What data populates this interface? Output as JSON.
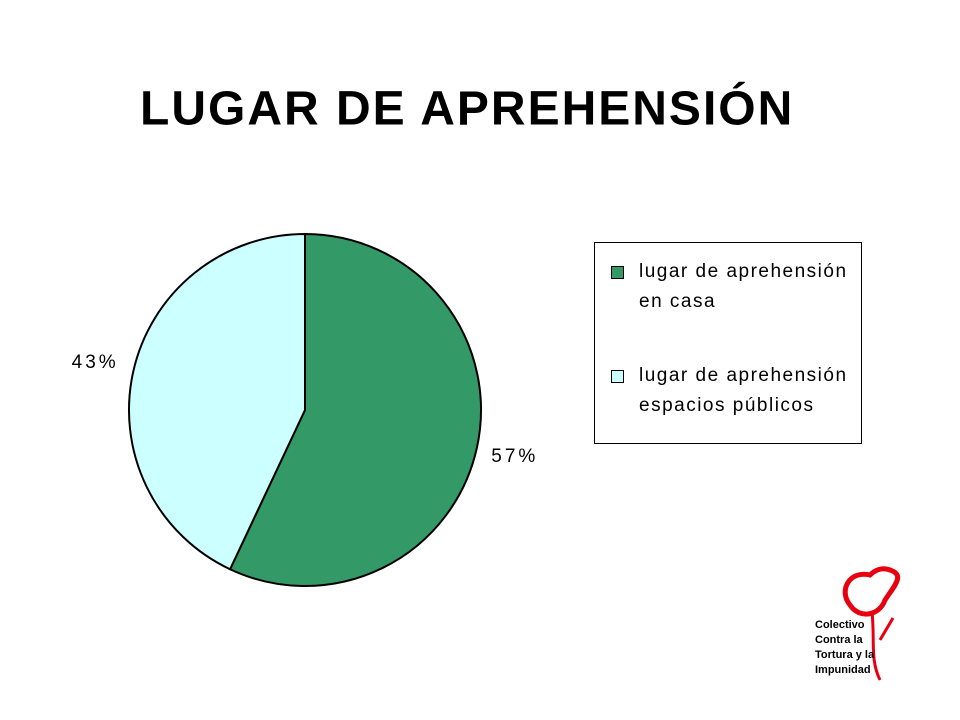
{
  "chart_data": {
    "type": "pie",
    "title": "Lugar de aprehensión",
    "categories": [
      "lugar de aprehensión en casa",
      "lugar de aprehensión espacios públicos"
    ],
    "values": [
      57,
      43
    ],
    "value_labels": [
      "57%",
      "43%"
    ],
    "colors": [
      "#339966",
      "#CCFFFF"
    ],
    "legend": "right"
  },
  "logo": {
    "lines": [
      "Colectivo",
      "Contra la",
      "Tortura y la",
      "Impunidad"
    ]
  }
}
